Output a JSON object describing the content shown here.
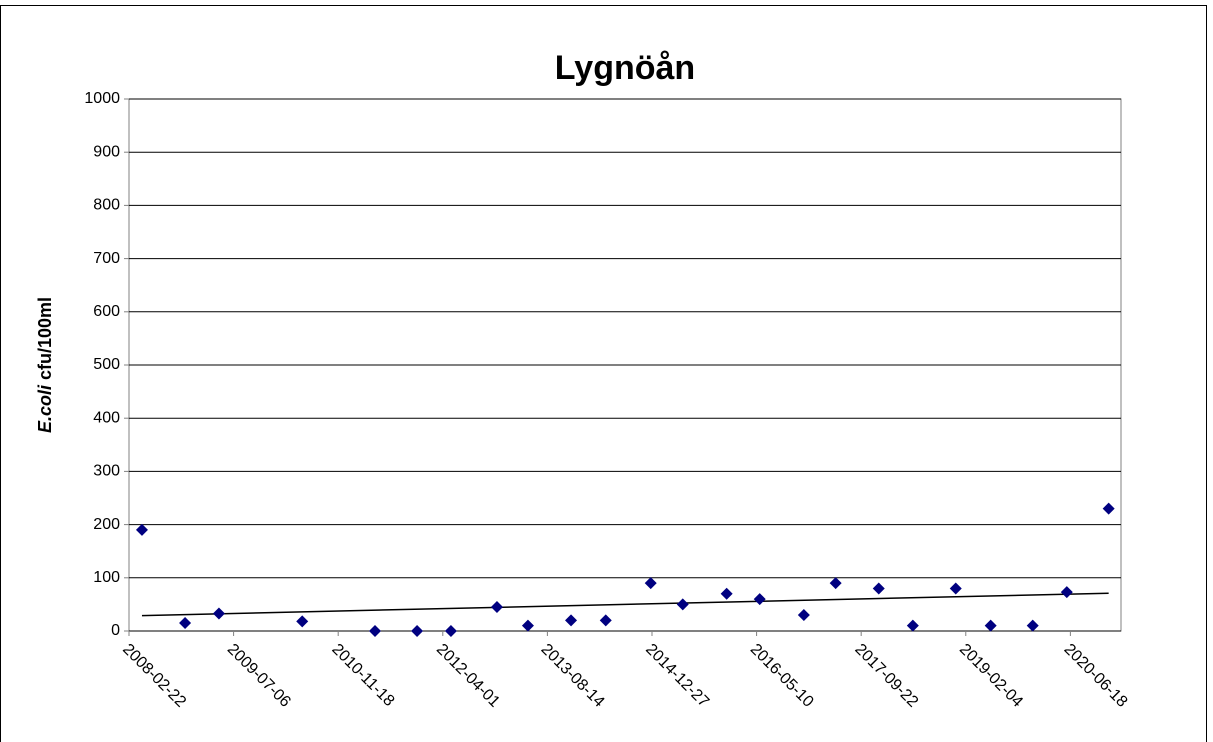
{
  "chart_data": {
    "type": "scatter",
    "title": "Lygnöån",
    "ylabel": {
      "italic": "E.coli",
      "text": " cfu/100ml"
    },
    "x": [
      "2008-04-24",
      "2008-11-16",
      "2009-04-27",
      "2010-05-30",
      "2011-05-13",
      "2011-11-30",
      "2012-05-10",
      "2012-12-16",
      "2013-05-13",
      "2013-12-05",
      "2014-05-20",
      "2014-12-21",
      "2015-05-23",
      "2015-12-19",
      "2016-05-25",
      "2016-12-22",
      "2017-05-23",
      "2017-12-15",
      "2018-05-27",
      "2018-12-18",
      "2019-06-03",
      "2019-12-21",
      "2020-06-01",
      "2020-12-18"
    ],
    "series": [
      {
        "color": "#000080",
        "values": [
          190,
          15,
          33,
          18,
          0,
          0,
          0,
          45,
          10,
          20,
          20,
          90,
          50,
          70,
          60,
          30,
          90,
          80,
          10,
          80,
          10,
          10,
          73,
          230
        ]
      }
    ],
    "trendline": {
      "x": [
        "2008-04-24",
        "2020-12-18"
      ],
      "values": [
        29,
        71
      ],
      "color": "#000000"
    },
    "xlim": [
      "2008-02-22",
      "2021-02-15"
    ],
    "xticks": [
      "2008-02-22",
      "2009-07-06",
      "2010-11-18",
      "2012-04-01",
      "2013-08-14",
      "2014-12-27",
      "2016-05-10",
      "2017-09-22",
      "2019-02-04",
      "2020-06-18"
    ],
    "ylim": [
      0,
      1000
    ],
    "yticks": [
      0,
      100,
      200,
      300,
      400,
      500,
      600,
      700,
      800,
      900,
      1000
    ],
    "grid": true
  }
}
